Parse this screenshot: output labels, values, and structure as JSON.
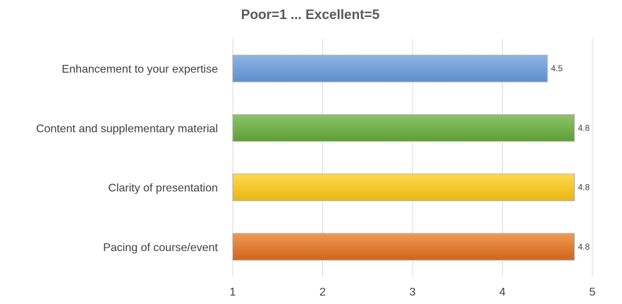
{
  "chart_data": {
    "type": "bar",
    "orientation": "horizontal",
    "title": "Poor=1 ... Excellent=5",
    "xlabel": "",
    "ylabel": "",
    "categories": [
      "Enhancement to your expertise",
      "Content and supplementary material",
      "Clarity of presentation",
      "Pacing of course/event"
    ],
    "values": [
      4.5,
      4.8,
      4.8,
      4.8
    ],
    "data_labels": [
      "4.5",
      "4.8",
      "4.8",
      "4.8"
    ],
    "xlim": [
      1,
      5
    ],
    "xticks": [
      "1",
      "2",
      "3",
      "4",
      "5"
    ],
    "grid": true,
    "legend": "none",
    "bar_colors": [
      [
        "#8fb3e3",
        "#5b8fd0"
      ],
      [
        "#8cc566",
        "#5f9d39"
      ],
      [
        "#ffd84d",
        "#eab713"
      ],
      [
        "#f09a55",
        "#d2641b"
      ]
    ]
  }
}
